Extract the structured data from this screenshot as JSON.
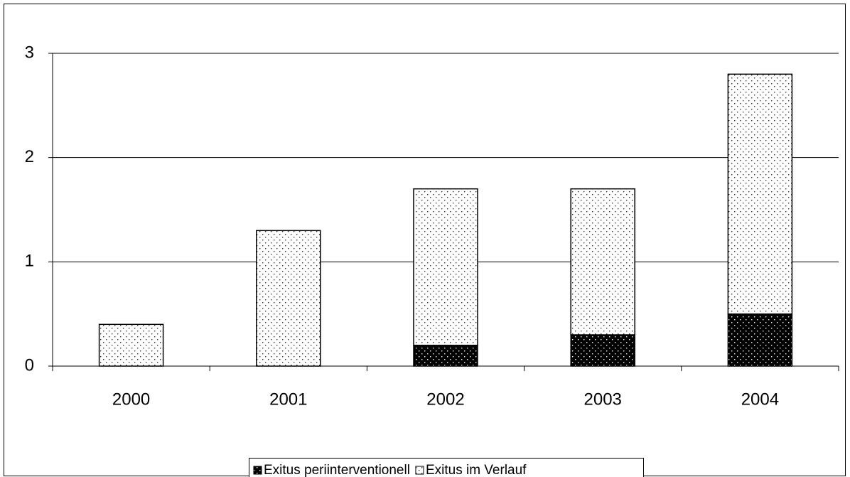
{
  "chart_data": {
    "type": "stacked_bar",
    "categories": [
      "2000",
      "2001",
      "2002",
      "2003",
      "2004"
    ],
    "series": [
      {
        "name": "Exitus periinterventionell",
        "color": "#000000",
        "values": [
          0,
          0,
          0.2,
          0.3,
          0.5
        ]
      },
      {
        "name": "Exitus im Verlauf",
        "color": "#ffffff",
        "values": [
          0.4,
          1.3,
          1.5,
          1.4,
          2.3
        ]
      }
    ],
    "ylim": [
      0,
      3
    ],
    "yticks": [
      0,
      1,
      2,
      3
    ],
    "grid": true,
    "legend": "bottom"
  }
}
